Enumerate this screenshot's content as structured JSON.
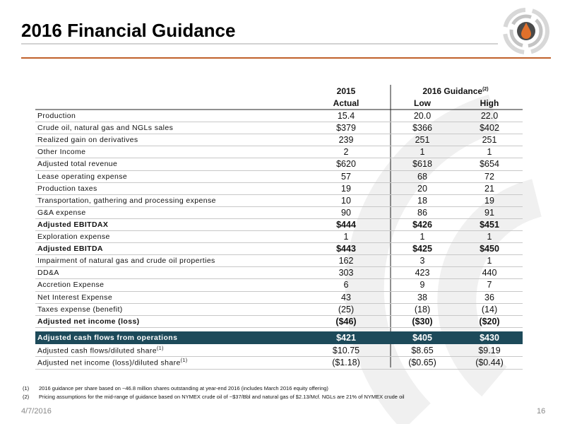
{
  "header": {
    "title": "2016 Financial Guidance"
  },
  "table": {
    "col_2015": {
      "line1": "2015",
      "line2": "Actual"
    },
    "group_header": {
      "text": "2016 Guidance",
      "sup": "(2)"
    },
    "col_low": "Low",
    "col_high": "High",
    "rows": [
      {
        "label": "Production",
        "values": [
          "15.4",
          "20.0",
          "22.0"
        ]
      },
      {
        "label": "Crude oil, natural gas and NGLs sales",
        "values": [
          "$379",
          "$366",
          "$402"
        ]
      },
      {
        "label": "Realized gain on derivatives",
        "values": [
          "239",
          "251",
          "251"
        ]
      },
      {
        "label": "Other Income",
        "values": [
          "2",
          "1",
          "1"
        ]
      },
      {
        "label": "Adjusted total revenue",
        "values": [
          "$620",
          "$618",
          "$654"
        ]
      },
      {
        "label": "Lease operating expense",
        "values": [
          "57",
          "68",
          "72"
        ]
      },
      {
        "label": "Production taxes",
        "values": [
          "19",
          "20",
          "21"
        ]
      },
      {
        "label": "Transportation, gathering and processing expense",
        "values": [
          "10",
          "18",
          "19"
        ]
      },
      {
        "label": "G&A expense",
        "values": [
          "90",
          "86",
          "91"
        ]
      },
      {
        "label": "Adjusted EBITDAX",
        "values": [
          "$444",
          "$426",
          "$451"
        ],
        "bold": true
      },
      {
        "label": "Exploration expense",
        "values": [
          "1",
          "1",
          "1"
        ]
      },
      {
        "label": "Adjusted EBITDA",
        "values": [
          "$443",
          "$425",
          "$450"
        ],
        "bold": true
      },
      {
        "label": "Impairment of natural gas and crude oil properties",
        "values": [
          "162",
          "3",
          "1"
        ]
      },
      {
        "label": "DD&A",
        "values": [
          "303",
          "423",
          "440"
        ]
      },
      {
        "label": "Accretion Expense",
        "values": [
          "6",
          "9",
          "7"
        ]
      },
      {
        "label": "Net Interest Expense",
        "values": [
          "43",
          "38",
          "36"
        ]
      },
      {
        "label": "Taxes expense (benefit)",
        "values": [
          "(25)",
          "(18)",
          "(14)"
        ]
      },
      {
        "label": "Adjusted net income (loss)",
        "values": [
          "($46)",
          "($30)",
          "($20)"
        ],
        "bold": true
      }
    ],
    "lower_rows": [
      {
        "label": "Adjusted cash flows from operations",
        "values": [
          "$421",
          "$405",
          "$430"
        ],
        "highlight": true
      },
      {
        "label": "Adjusted cash flows/diluted share",
        "sup": "(1)",
        "values": [
          "$10.75",
          "$8.65",
          "$9.19"
        ]
      },
      {
        "label": "Adjusted net income (loss)/diluted share",
        "sup": "(1)",
        "values": [
          "($1.18)",
          "($0.65)",
          "($0.44)"
        ]
      }
    ]
  },
  "footnotes": [
    {
      "marker": "(1)",
      "text": "2016 guidance per share based on ~46.8 million shares outstanding at year-end 2016 (includes March 2016 equity offering)"
    },
    {
      "marker": "(2)",
      "text": "Pricing assumptions for the mid-range of guidance based on NYMEX crude oil of ~$37/Bbl and natural gas of $2.13/Mcf. NGLs are 21% of NYMEX crude oil"
    }
  ],
  "footer": {
    "date": "4/7/2016",
    "page": "16"
  }
}
